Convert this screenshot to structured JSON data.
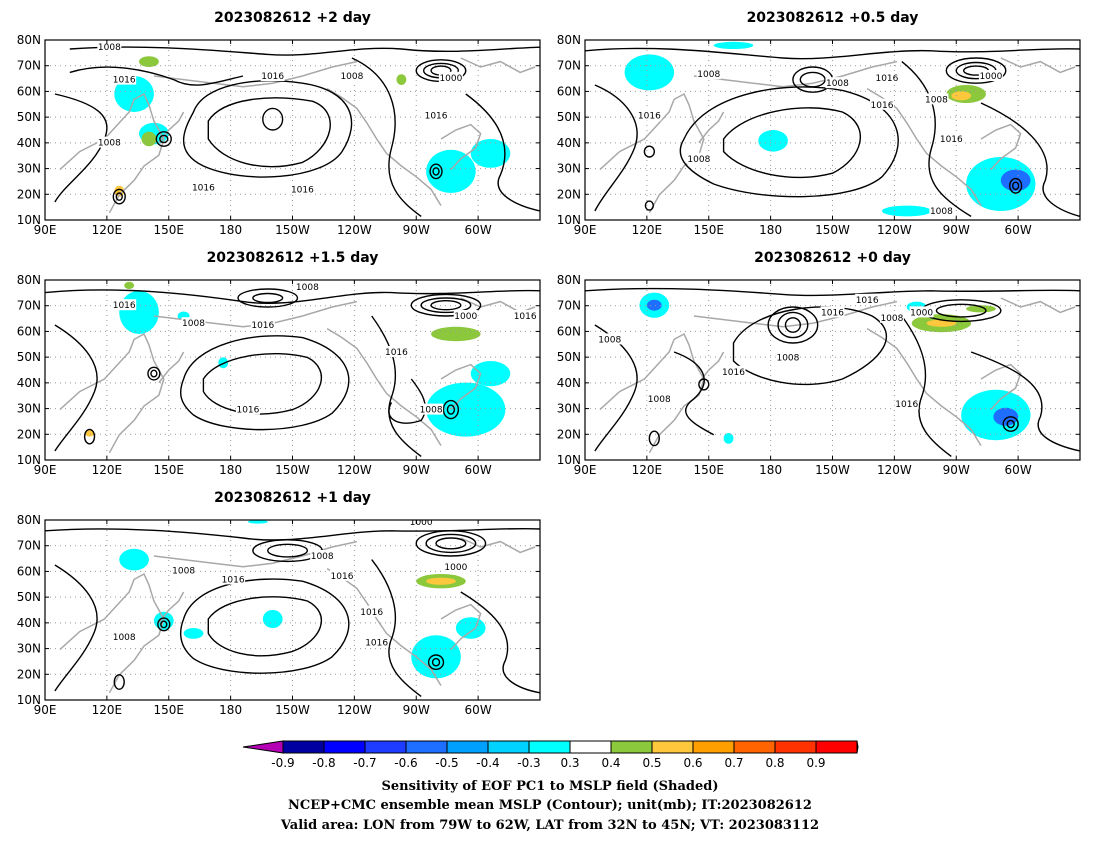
{
  "panels": [
    {
      "id": "p2",
      "title": "2023082612 +2 day",
      "xticks": [
        "90E",
        "120E",
        "150E",
        "180",
        "150W",
        "120W",
        "90W",
        "60W"
      ],
      "yticks": [
        "80N",
        "70N",
        "60N",
        "50N",
        "40N",
        "30N",
        "20N",
        "10N"
      ],
      "labels": [
        "1008",
        "1016",
        "1008",
        "1016",
        "1000",
        "1016",
        "1008",
        "1016",
        "1016"
      ]
    },
    {
      "id": "p05",
      "title": "2023082612 +0.5 day",
      "xticks": [
        "90E",
        "120E",
        "150E",
        "180",
        "150W",
        "120W",
        "90W",
        "60W"
      ],
      "yticks": [
        "80N",
        "70N",
        "60N",
        "50N",
        "40N",
        "30N",
        "20N",
        "10N"
      ],
      "labels": [
        "1008",
        "1008",
        "1016",
        "1000",
        "1016",
        "1008",
        "1016",
        "1016",
        "1008",
        "1008"
      ]
    },
    {
      "id": "p15",
      "title": "2023082612 +1.5 day",
      "xticks": [
        "90E",
        "120E",
        "150E",
        "180",
        "150W",
        "120W",
        "90W",
        "60W"
      ],
      "yticks": [
        "80N",
        "70N",
        "60N",
        "50N",
        "40N",
        "30N",
        "20N",
        "10N"
      ],
      "labels": [
        "1008",
        "1016",
        "1008",
        "1016",
        "1000",
        "1016",
        "1016",
        "1016",
        "1008"
      ]
    },
    {
      "id": "p0",
      "title": "2023082612 +0 day",
      "xticks": [
        "90E",
        "120E",
        "150E",
        "180",
        "150W",
        "120W",
        "90W",
        "60W"
      ],
      "yticks": [
        "80N",
        "70N",
        "60N",
        "50N",
        "40N",
        "30N",
        "20N",
        "10N"
      ],
      "labels": [
        "1008",
        "1016",
        "1016",
        "1008",
        "1000",
        "1008",
        "1016",
        "1008",
        "1016"
      ]
    },
    {
      "id": "p1",
      "title": "2023082612 +1 day",
      "xticks": [
        "90E",
        "120E",
        "150E",
        "180",
        "150W",
        "120W",
        "90W",
        "60W"
      ],
      "yticks": [
        "80N",
        "70N",
        "60N",
        "50N",
        "40N",
        "30N",
        "20N",
        "10N"
      ],
      "labels": [
        "1000",
        "1008",
        "1008",
        "1016",
        "1016",
        "1000",
        "1016",
        "1008",
        "1016"
      ]
    }
  ],
  "colorbar": {
    "labels": [
      "-0.9",
      "-0.8",
      "-0.7",
      "-0.6",
      "-0.5",
      "-0.4",
      "-0.3",
      "0.3",
      "0.4",
      "0.5",
      "0.6",
      "0.7",
      "0.8",
      "0.9"
    ],
    "colors": [
      "#b400b4",
      "#0000a0",
      "#0000ff",
      "#1e3cff",
      "#1e6eff",
      "#00a0ff",
      "#00d2ff",
      "#00ffff",
      "#ffffff",
      "#8cc83c",
      "#ffc83c",
      "#ffa000",
      "#ff6400",
      "#ff3200",
      "#ff0000",
      "#ff96c8"
    ]
  },
  "caption": {
    "line1": "Sensitivity of EOF PC1 to MSLP field (Shaded)",
    "line2": "NCEP+CMC ensemble mean MSLP (Contour); unit(mb); IT:2023082612",
    "line3": "Valid area: LON from 79W to 62W, LAT from 32N to 45N; VT: 2023083112"
  }
}
